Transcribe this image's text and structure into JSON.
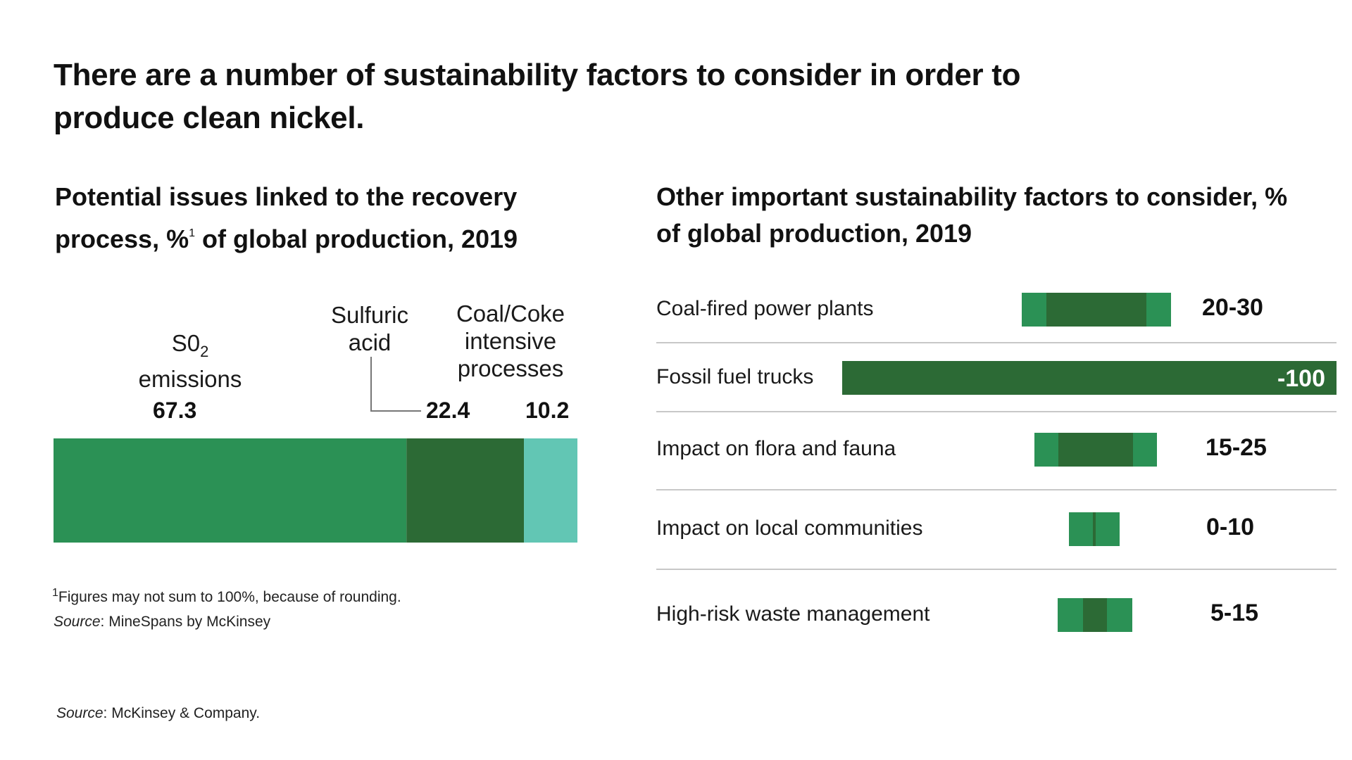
{
  "headline": "There are a number of sustainability factors to consider in order to produce clean nickel.",
  "left_panel": {
    "subtitle_main": "Potential issues linked to the recovery process, %",
    "subtitle_sup": "1",
    "subtitle_end": " of global production, 2019",
    "segment_labels": {
      "so2_main": "S0",
      "so2_sub": "2",
      "so2_line2": "emissions",
      "sulfuric_line1": "Sulfuric",
      "sulfuric_line2": "acid",
      "coal_line1": "Coal/Coke",
      "coal_line2": "intensive",
      "coal_line3": "processes"
    },
    "value_labels": {
      "so2": "67.3",
      "sulfuric": "22.4",
      "coal": "10.2"
    },
    "footnote_sup": "1",
    "footnote_text": "Figures  may not sum to 100%, because of rounding.",
    "source_label": "Source",
    "source_text": ":  MineSpans by McKinsey"
  },
  "right_panel": {
    "subtitle": "Other important sustainability factors to consider, % of global production, 2019"
  },
  "bottom_source": {
    "label": "Source",
    "text": ":  McKinsey & Company."
  },
  "colors": {
    "so2": "#2b9155",
    "sulfuric": "#2c6a35",
    "coal": "#62c6b4",
    "range_light": "#2b9155",
    "range_dark": "#2c6a35"
  },
  "chart_data": [
    {
      "type": "bar",
      "orientation": "horizontal-stacked",
      "categories": [
        "S02 emissions",
        "Sulfuric acid",
        "Coal/Coke intensive processes"
      ],
      "values": [
        67.3,
        22.4,
        10.2
      ],
      "unit": "%",
      "xlim": [
        0,
        100
      ]
    },
    {
      "type": "bar",
      "orientation": "horizontal-range",
      "rows": [
        {
          "label": "Coal-fired power plants",
          "range_label": "20-30",
          "low": 20,
          "high": 30
        },
        {
          "label": "Fossil fuel trucks",
          "range_label": "-100",
          "low": 100,
          "high": 100
        },
        {
          "label": "Impact on flora and fauna",
          "range_label": "15-25",
          "low": 15,
          "high": 25
        },
        {
          "label": "Impact on local communities",
          "range_label": "0-10",
          "low": 0,
          "high": 10
        },
        {
          "label": "High-risk waste management",
          "range_label": "5-15",
          "low": 5,
          "high": 15
        }
      ],
      "unit": "%",
      "xlim": [
        0,
        100
      ]
    }
  ]
}
